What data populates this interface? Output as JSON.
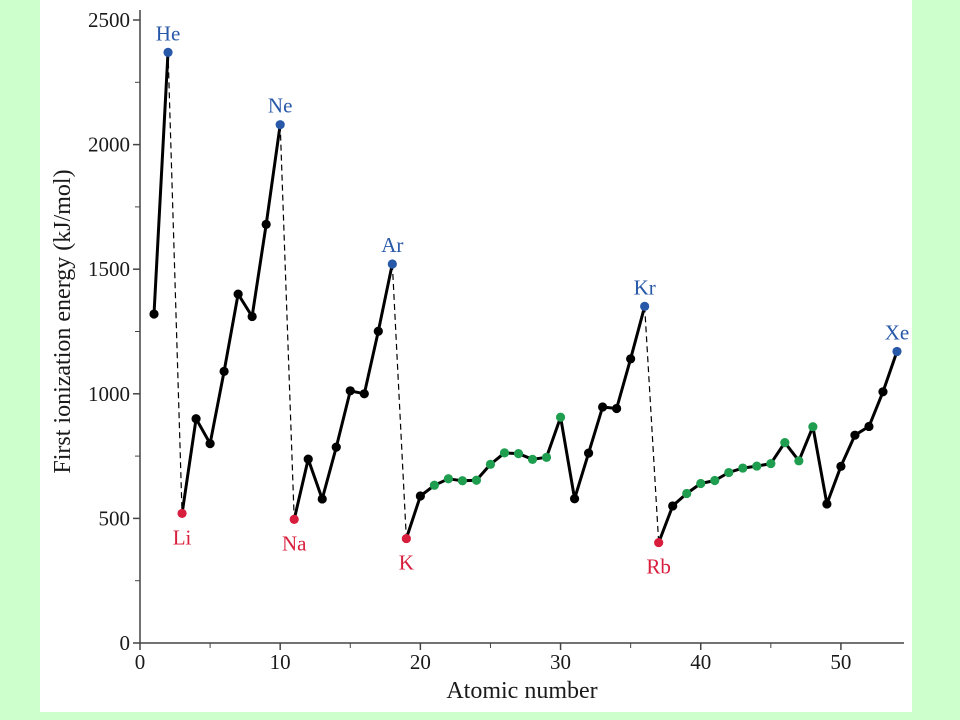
{
  "colors": {
    "outer_background": "#ccffcc",
    "panel_background": "#ffffff",
    "line": "#000000",
    "noble_gas": "#2858a8",
    "alkali_metal": "#d81e3c",
    "transition_metal": "#1f9e50",
    "other": "#000000",
    "axis": "#444444"
  },
  "chart_data": {
    "type": "line",
    "xlabel": "Atomic number",
    "ylabel": "First ionization energy (kJ/mol)",
    "xlim": [
      0,
      54.5
    ],
    "ylim": [
      0,
      2500
    ],
    "xticks": [
      0,
      10,
      20,
      30,
      40,
      50
    ],
    "xtick_labels": [
      "0",
      "10",
      "20",
      "30",
      "40",
      "50"
    ],
    "yticks": [
      0,
      500,
      1000,
      1500,
      2000,
      2500
    ],
    "ytick_labels": [
      "0",
      "500",
      "1000",
      "1500",
      "2000",
      "2500"
    ],
    "minor_xticks": [
      5,
      15,
      25,
      35,
      45
    ],
    "minor_yticks": [
      250,
      750,
      1250,
      1750,
      2250
    ],
    "grid": false,
    "segments": [
      {
        "from": 1,
        "to": 2
      },
      {
        "from": 3,
        "to": 10
      },
      {
        "from": 11,
        "to": 18
      },
      {
        "from": 19,
        "to": 36
      },
      {
        "from": 37,
        "to": 54
      }
    ],
    "dashed_drops": [
      [
        2,
        3
      ],
      [
        10,
        11
      ],
      [
        18,
        19
      ],
      [
        36,
        37
      ]
    ],
    "points": [
      {
        "z": 1,
        "e": 1320,
        "group": "other"
      },
      {
        "z": 2,
        "e": 2370,
        "group": "noble_gas"
      },
      {
        "z": 3,
        "e": 520,
        "group": "alkali_metal"
      },
      {
        "z": 4,
        "e": 900,
        "group": "other"
      },
      {
        "z": 5,
        "e": 800,
        "group": "other"
      },
      {
        "z": 6,
        "e": 1090,
        "group": "other"
      },
      {
        "z": 7,
        "e": 1400,
        "group": "other"
      },
      {
        "z": 8,
        "e": 1310,
        "group": "other"
      },
      {
        "z": 9,
        "e": 1680,
        "group": "other"
      },
      {
        "z": 10,
        "e": 2080,
        "group": "noble_gas"
      },
      {
        "z": 11,
        "e": 496,
        "group": "alkali_metal"
      },
      {
        "z": 12,
        "e": 738,
        "group": "other"
      },
      {
        "z": 13,
        "e": 578,
        "group": "other"
      },
      {
        "z": 14,
        "e": 786,
        "group": "other"
      },
      {
        "z": 15,
        "e": 1012,
        "group": "other"
      },
      {
        "z": 16,
        "e": 1000,
        "group": "other"
      },
      {
        "z": 17,
        "e": 1251,
        "group": "other"
      },
      {
        "z": 18,
        "e": 1521,
        "group": "noble_gas"
      },
      {
        "z": 19,
        "e": 419,
        "group": "alkali_metal"
      },
      {
        "z": 20,
        "e": 590,
        "group": "other"
      },
      {
        "z": 21,
        "e": 633,
        "group": "transition_metal"
      },
      {
        "z": 22,
        "e": 659,
        "group": "transition_metal"
      },
      {
        "z": 23,
        "e": 651,
        "group": "transition_metal"
      },
      {
        "z": 24,
        "e": 653,
        "group": "transition_metal"
      },
      {
        "z": 25,
        "e": 717,
        "group": "transition_metal"
      },
      {
        "z": 26,
        "e": 763,
        "group": "transition_metal"
      },
      {
        "z": 27,
        "e": 760,
        "group": "transition_metal"
      },
      {
        "z": 28,
        "e": 737,
        "group": "transition_metal"
      },
      {
        "z": 29,
        "e": 745,
        "group": "transition_metal"
      },
      {
        "z": 30,
        "e": 906,
        "group": "transition_metal"
      },
      {
        "z": 31,
        "e": 579,
        "group": "other"
      },
      {
        "z": 32,
        "e": 762,
        "group": "other"
      },
      {
        "z": 33,
        "e": 947,
        "group": "other"
      },
      {
        "z": 34,
        "e": 941,
        "group": "other"
      },
      {
        "z": 35,
        "e": 1140,
        "group": "other"
      },
      {
        "z": 36,
        "e": 1351,
        "group": "noble_gas"
      },
      {
        "z": 37,
        "e": 403,
        "group": "alkali_metal"
      },
      {
        "z": 38,
        "e": 550,
        "group": "other"
      },
      {
        "z": 39,
        "e": 600,
        "group": "transition_metal"
      },
      {
        "z": 40,
        "e": 640,
        "group": "transition_metal"
      },
      {
        "z": 41,
        "e": 652,
        "group": "transition_metal"
      },
      {
        "z": 42,
        "e": 684,
        "group": "transition_metal"
      },
      {
        "z": 43,
        "e": 702,
        "group": "transition_metal"
      },
      {
        "z": 44,
        "e": 710,
        "group": "transition_metal"
      },
      {
        "z": 45,
        "e": 720,
        "group": "transition_metal"
      },
      {
        "z": 46,
        "e": 804,
        "group": "transition_metal"
      },
      {
        "z": 47,
        "e": 731,
        "group": "transition_metal"
      },
      {
        "z": 48,
        "e": 868,
        "group": "transition_metal"
      },
      {
        "z": 49,
        "e": 558,
        "group": "other"
      },
      {
        "z": 50,
        "e": 709,
        "group": "other"
      },
      {
        "z": 51,
        "e": 834,
        "group": "other"
      },
      {
        "z": 52,
        "e": 869,
        "group": "other"
      },
      {
        "z": 53,
        "e": 1008,
        "group": "other"
      },
      {
        "z": 54,
        "e": 1170,
        "group": "noble_gas"
      }
    ],
    "annotations": [
      {
        "text": "He",
        "z": 2,
        "placement": "above",
        "group": "noble_gas"
      },
      {
        "text": "Ne",
        "z": 10,
        "placement": "above",
        "group": "noble_gas"
      },
      {
        "text": "Ar",
        "z": 18,
        "placement": "above",
        "group": "noble_gas"
      },
      {
        "text": "Kr",
        "z": 36,
        "placement": "above",
        "group": "noble_gas"
      },
      {
        "text": "Xe",
        "z": 54,
        "placement": "above",
        "group": "noble_gas"
      },
      {
        "text": "Li",
        "z": 3,
        "placement": "below",
        "group": "alkali_metal"
      },
      {
        "text": "Na",
        "z": 11,
        "placement": "below",
        "group": "alkali_metal"
      },
      {
        "text": "K",
        "z": 19,
        "placement": "below",
        "group": "alkali_metal"
      },
      {
        "text": "Rb",
        "z": 37,
        "placement": "below",
        "group": "alkali_metal"
      }
    ]
  }
}
